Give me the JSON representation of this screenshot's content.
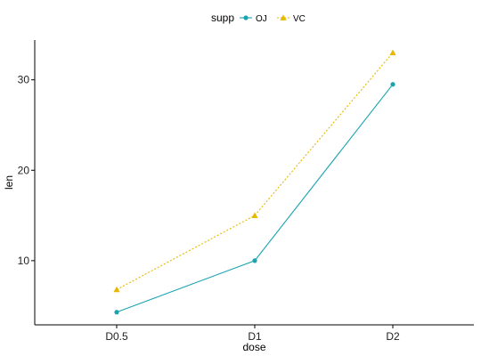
{
  "chart_data": {
    "type": "line",
    "categories": [
      "D0.5",
      "D1",
      "D2"
    ],
    "series": [
      {
        "name": "OJ",
        "values": [
          4.3,
          10.0,
          29.5
        ],
        "color": "#1aa3b0",
        "marker": "circle",
        "line": "solid"
      },
      {
        "name": "VC",
        "values": [
          6.8,
          15.0,
          33.0
        ],
        "color": "#e7b800",
        "marker": "triangle",
        "line": "dotted"
      }
    ],
    "xlabel": "dose",
    "ylabel": "len",
    "ylim": [
      2.9,
      34.4
    ],
    "yticks": [
      10,
      20,
      30
    ],
    "grid": false,
    "legend": {
      "title": "supp",
      "position": "top"
    }
  }
}
